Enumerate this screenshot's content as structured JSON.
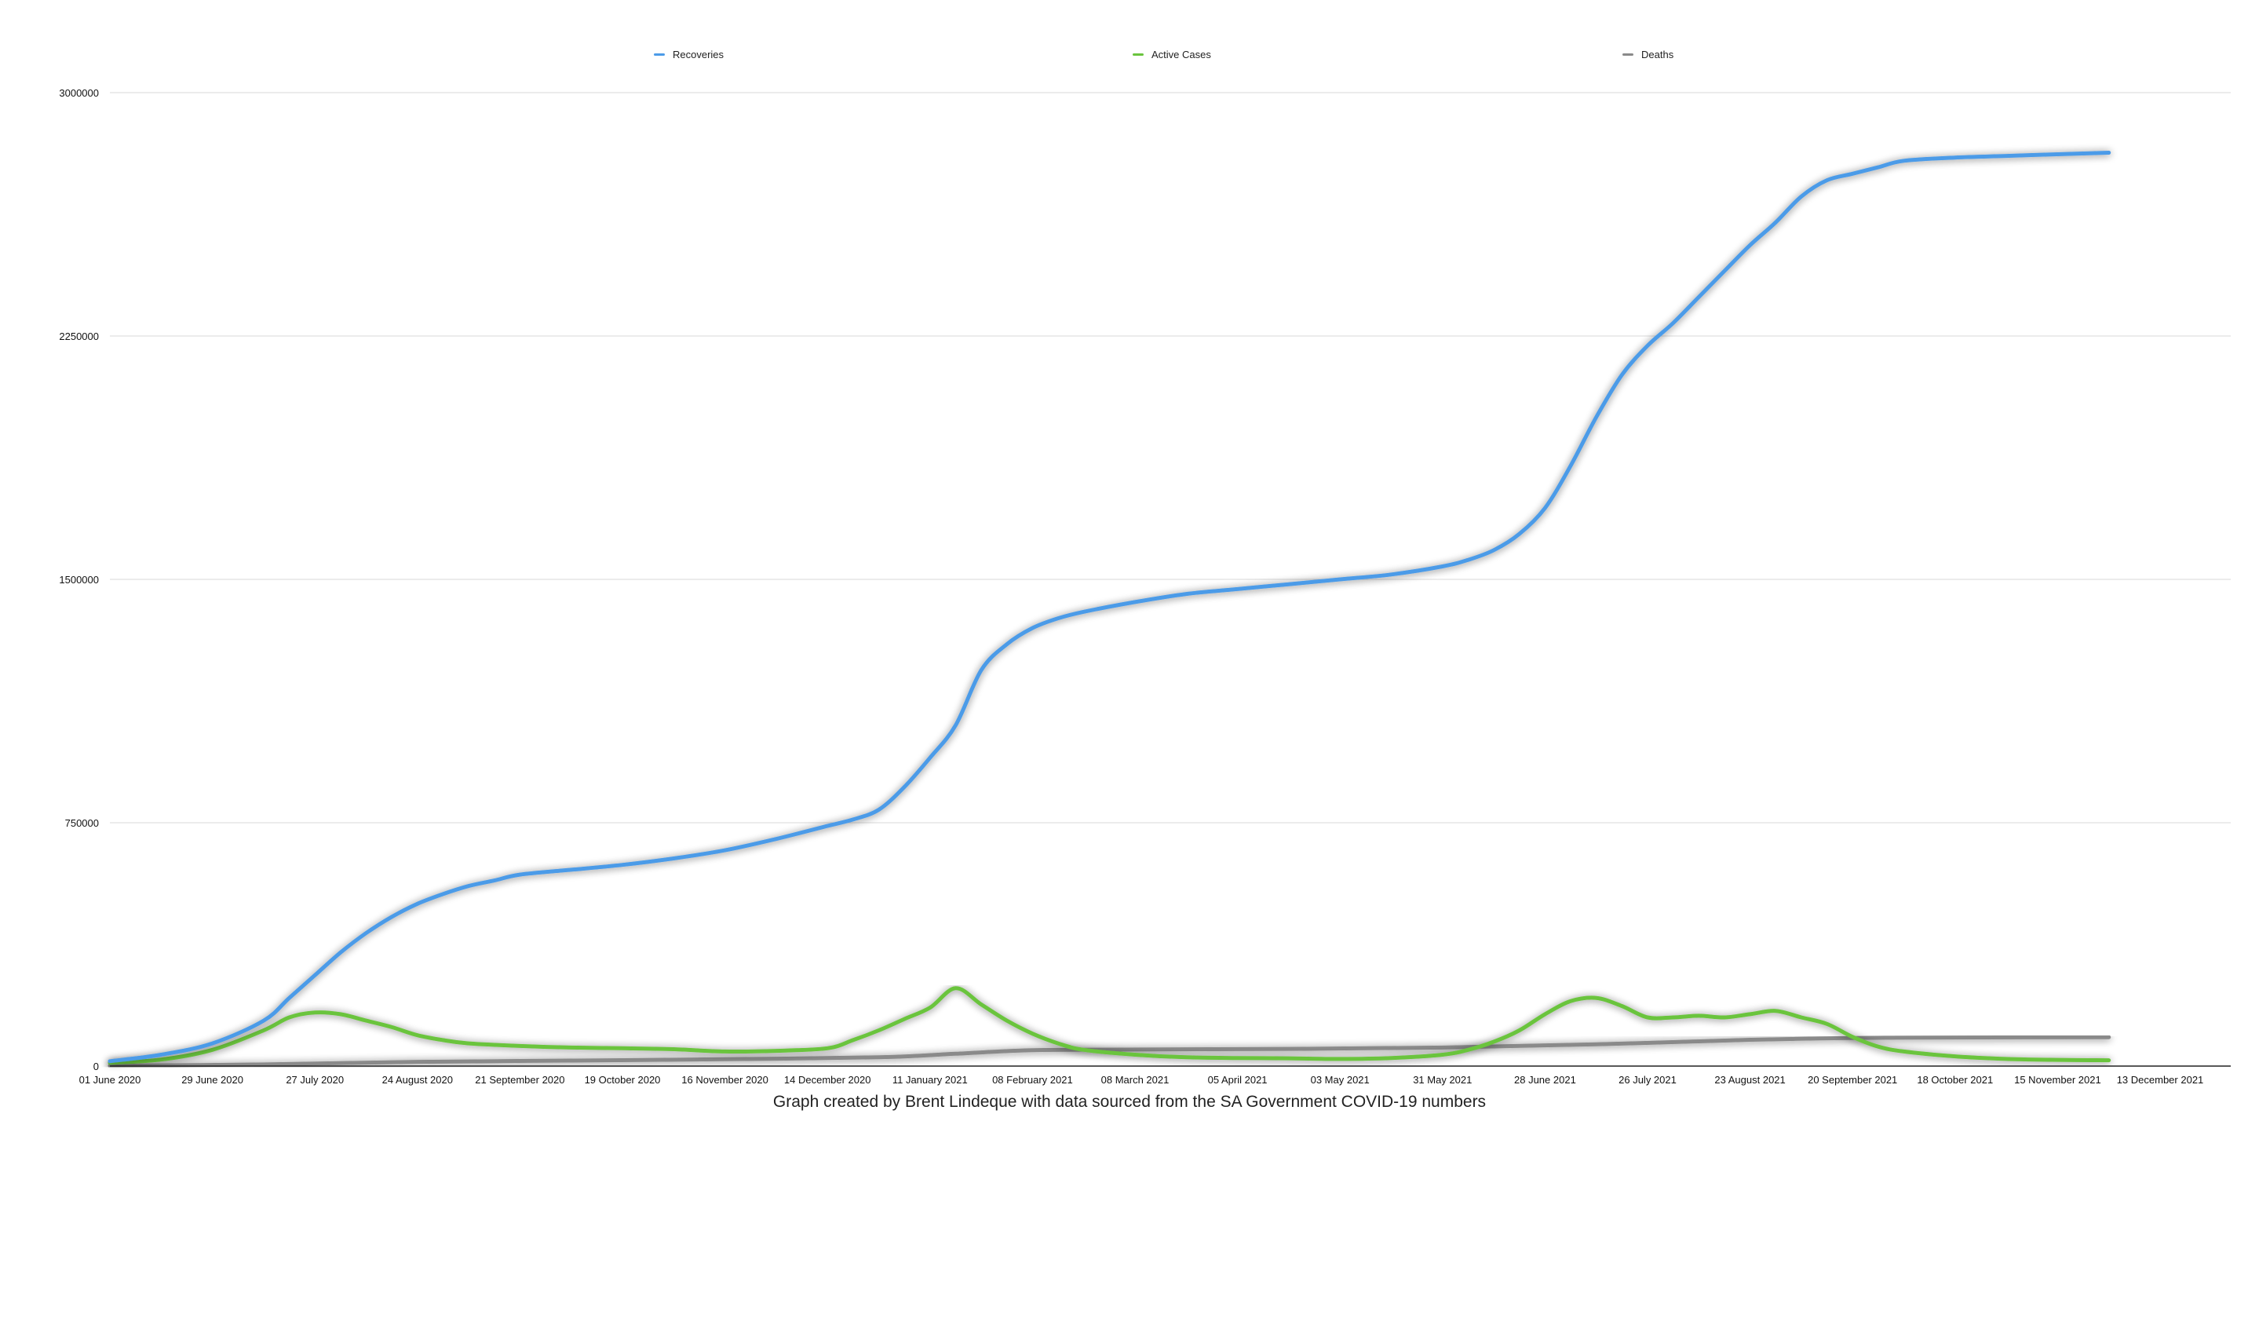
{
  "caption": "Graph created by Brent Lindeque with data sourced from the SA Government COVID-19 numbers",
  "chart_data": {
    "type": "line",
    "title": "",
    "xlabel": "",
    "ylabel": "",
    "ylim": [
      0,
      3000000
    ],
    "y_ticks": [
      0,
      750000,
      1500000,
      2250000,
      3000000
    ],
    "y_tick_labels": [
      "0",
      "750000",
      "1500000",
      "2250000",
      "3000000"
    ],
    "x_tick_labels": [
      "01 June 2020",
      "29 June 2020",
      "27 July 2020",
      "24 August 2020",
      "21 September 2020",
      "19 October 2020",
      "16 November 2020",
      "14 December 2020",
      "11 January 2021",
      "08 February 2021",
      "08 March 2021",
      "05 April 2021",
      "03 May 2021",
      "31 May 2021",
      "28 June 2021",
      "26 July 2021",
      "23 August 2021",
      "20 September 2021",
      "18 October 2021",
      "15 November 2021",
      "13 December 2021"
    ],
    "grid": true,
    "legend_position": "top",
    "series": [
      {
        "name": "Recoveries",
        "color": "#4c9be8",
        "x": [
          "2020-06-01",
          "2020-06-15",
          "2020-06-29",
          "2020-07-13",
          "2020-07-20",
          "2020-07-27",
          "2020-08-03",
          "2020-08-10",
          "2020-08-17",
          "2020-08-24",
          "2020-08-31",
          "2020-09-07",
          "2020-09-14",
          "2020-09-21",
          "2020-10-05",
          "2020-10-19",
          "2020-11-02",
          "2020-11-16",
          "2020-11-30",
          "2020-12-14",
          "2020-12-21",
          "2020-12-28",
          "2021-01-04",
          "2021-01-11",
          "2021-01-18",
          "2021-01-25",
          "2021-02-01",
          "2021-02-08",
          "2021-02-15",
          "2021-02-22",
          "2021-03-08",
          "2021-03-22",
          "2021-04-05",
          "2021-04-19",
          "2021-05-03",
          "2021-05-17",
          "2021-05-31",
          "2021-06-07",
          "2021-06-14",
          "2021-06-21",
          "2021-06-28",
          "2021-07-05",
          "2021-07-12",
          "2021-07-19",
          "2021-07-26",
          "2021-08-02",
          "2021-08-09",
          "2021-08-16",
          "2021-08-23",
          "2021-08-30",
          "2021-09-06",
          "2021-09-13",
          "2021-09-20",
          "2021-09-27",
          "2021-10-04",
          "2021-10-18",
          "2021-11-01",
          "2021-11-15",
          "2021-11-29"
        ],
        "values": [
          15000,
          35000,
          70000,
          140000,
          210000,
          280000,
          350000,
          410000,
          460000,
          500000,
          530000,
          555000,
          572000,
          590000,
          605000,
          620000,
          640000,
          665000,
          700000,
          740000,
          760000,
          790000,
          860000,
          950000,
          1050000,
          1220000,
          1300000,
          1350000,
          1380000,
          1400000,
          1430000,
          1455000,
          1470000,
          1485000,
          1500000,
          1515000,
          1540000,
          1560000,
          1590000,
          1640000,
          1720000,
          1850000,
          2000000,
          2130000,
          2220000,
          2290000,
          2370000,
          2450000,
          2530000,
          2600000,
          2680000,
          2730000,
          2750000,
          2770000,
          2790000,
          2800000,
          2805000,
          2810000,
          2815000
        ]
      },
      {
        "name": "Active Cases",
        "color": "#6ac43e",
        "x": [
          "2020-06-01",
          "2020-06-15",
          "2020-06-29",
          "2020-07-13",
          "2020-07-20",
          "2020-07-27",
          "2020-08-03",
          "2020-08-10",
          "2020-08-17",
          "2020-08-24",
          "2020-08-31",
          "2020-09-07",
          "2020-09-21",
          "2020-10-05",
          "2020-10-19",
          "2020-11-02",
          "2020-11-16",
          "2020-11-30",
          "2020-12-14",
          "2020-12-21",
          "2020-12-28",
          "2021-01-04",
          "2021-01-11",
          "2021-01-18",
          "2021-01-25",
          "2021-02-01",
          "2021-02-08",
          "2021-02-15",
          "2021-02-22",
          "2021-03-08",
          "2021-03-22",
          "2021-04-05",
          "2021-04-19",
          "2021-05-03",
          "2021-05-17",
          "2021-05-31",
          "2021-06-07",
          "2021-06-14",
          "2021-06-21",
          "2021-06-28",
          "2021-07-05",
          "2021-07-12",
          "2021-07-19",
          "2021-07-26",
          "2021-08-02",
          "2021-08-09",
          "2021-08-16",
          "2021-08-23",
          "2021-08-30",
          "2021-09-06",
          "2021-09-13",
          "2021-09-20",
          "2021-09-27",
          "2021-10-04",
          "2021-10-18",
          "2021-11-01",
          "2021-11-15",
          "2021-11-29"
        ],
        "values": [
          10000,
          20000,
          50000,
          110000,
          150000,
          165000,
          160000,
          140000,
          120000,
          95000,
          80000,
          70000,
          62000,
          57000,
          55000,
          52000,
          45000,
          47000,
          55000,
          80000,
          110000,
          145000,
          180000,
          240000,
          190000,
          140000,
          100000,
          70000,
          50000,
          35000,
          27000,
          25000,
          24000,
          22000,
          25000,
          35000,
          50000,
          75000,
          110000,
          160000,
          200000,
          210000,
          185000,
          150000,
          150000,
          155000,
          150000,
          160000,
          170000,
          150000,
          130000,
          90000,
          60000,
          45000,
          30000,
          22000,
          19000,
          18000
        ]
      },
      {
        "name": "Deaths",
        "color": "#8a8a8a",
        "x": [
          "2020-06-01",
          "2020-07-13",
          "2020-08-24",
          "2020-10-05",
          "2020-11-16",
          "2020-12-28",
          "2021-01-18",
          "2021-02-08",
          "2021-03-08",
          "2021-04-19",
          "2021-05-31",
          "2021-07-12",
          "2021-08-23",
          "2021-09-20",
          "2021-10-18",
          "2021-11-29"
        ],
        "values": [
          1000,
          5000,
          13000,
          17000,
          21000,
          27000,
          38000,
          49000,
          51000,
          53000,
          57000,
          67000,
          81000,
          86500,
          88000,
          89000
        ]
      }
    ]
  }
}
